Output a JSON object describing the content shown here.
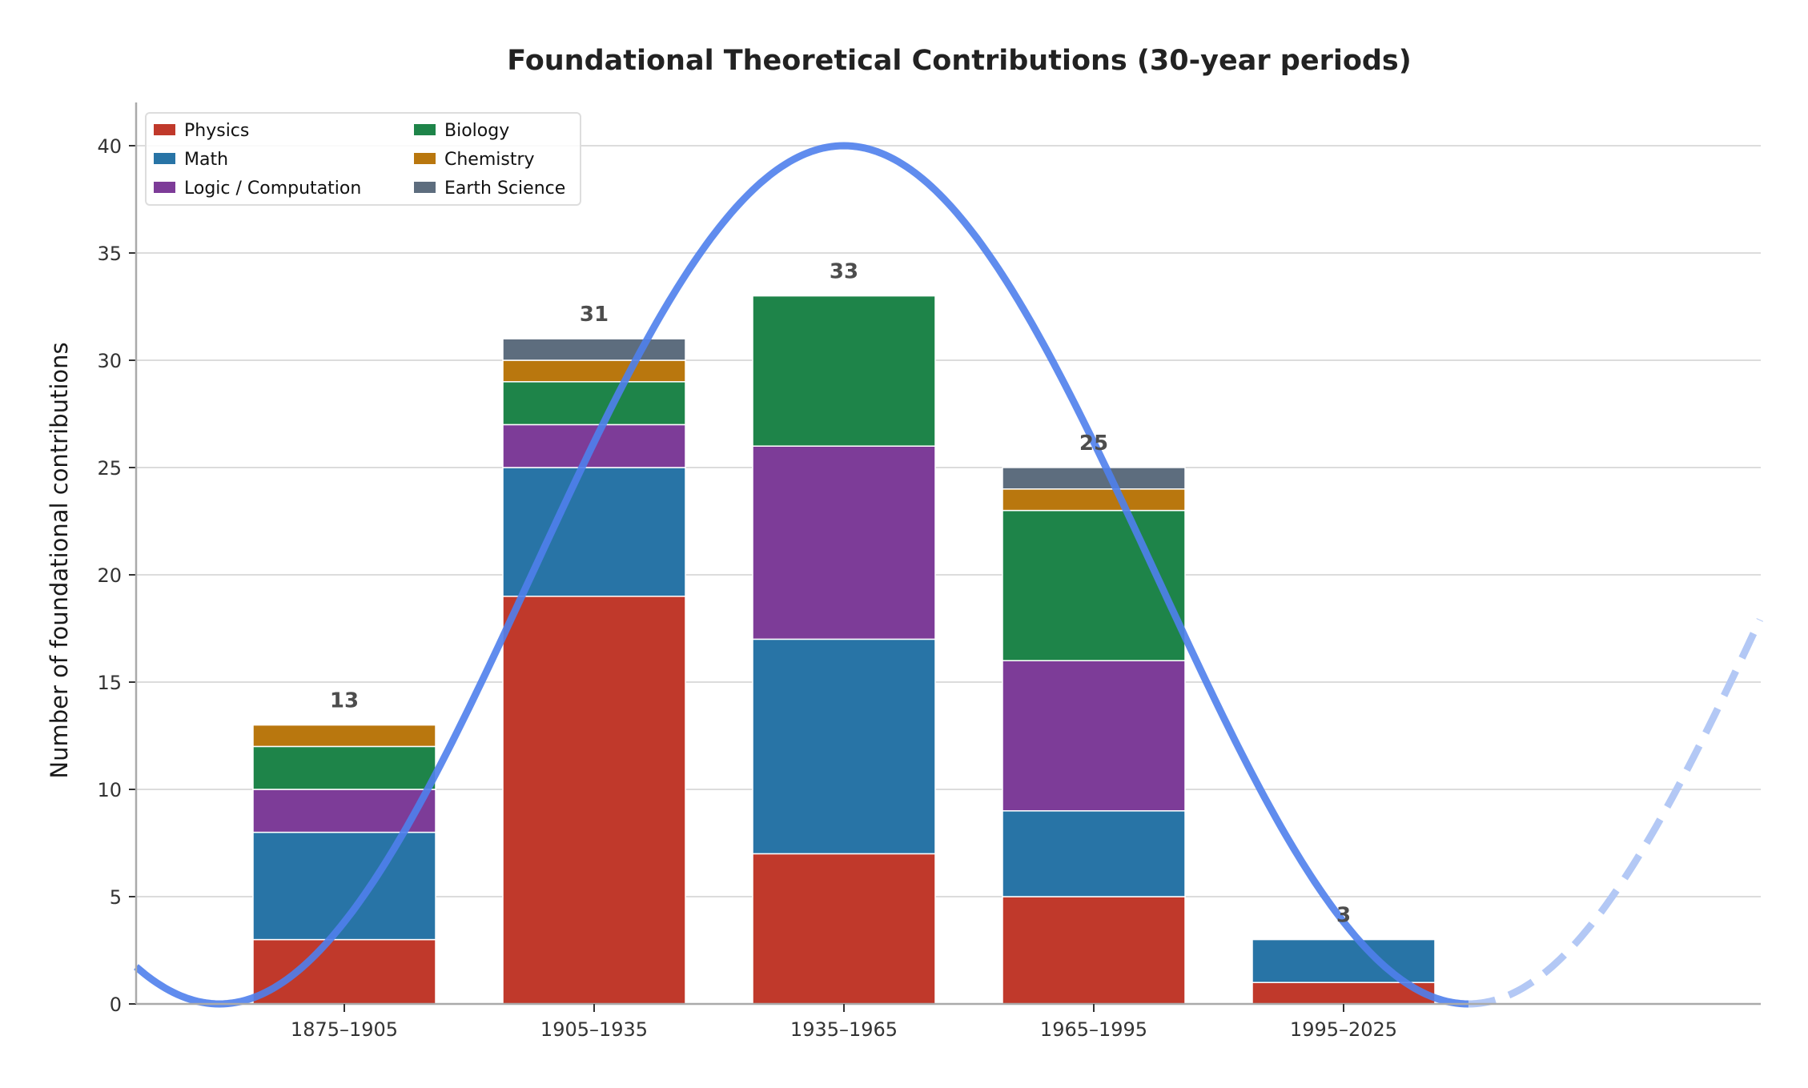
{
  "chart_data": {
    "type": "bar",
    "stacked": true,
    "title": "Foundational Theoretical Contributions (30-year periods)",
    "xlabel": "",
    "ylabel": "Number of foundational contributions",
    "ylim": [
      0,
      42
    ],
    "yticks": [
      0,
      5,
      10,
      15,
      20,
      25,
      30,
      35,
      40
    ],
    "grid": "horizontal",
    "legend_position": "top-left",
    "categories": [
      "1875–1905",
      "1905–1935",
      "1935–1965",
      "1965–1995",
      "1995–2025"
    ],
    "category_midyears": [
      1890,
      1920,
      1950,
      1980,
      2010
    ],
    "series": [
      {
        "name": "Physics",
        "color": "#c0392b",
        "values": [
          3,
          19,
          7,
          5,
          1
        ]
      },
      {
        "name": "Math",
        "color": "#2874a6",
        "values": [
          5,
          6,
          10,
          4,
          2
        ]
      },
      {
        "name": "Logic / Computation",
        "color": "#7d3c98",
        "values": [
          2,
          2,
          9,
          7,
          0
        ]
      },
      {
        "name": "Biology",
        "color": "#1e8449",
        "values": [
          2,
          2,
          7,
          7,
          0
        ]
      },
      {
        "name": "Chemistry",
        "color": "#b9770e",
        "values": [
          1,
          1,
          0,
          1,
          0
        ]
      },
      {
        "name": "Earth Science",
        "color": "#5d6d7e",
        "values": [
          0,
          1,
          0,
          1,
          0
        ]
      }
    ],
    "totals": [
      "13",
      "31",
      "33",
      "25",
      "3"
    ],
    "overlay_curve": {
      "type": "line",
      "description": "sinusoidal trend overlay",
      "color_solid": "#4f7fec",
      "color_dashed": "#b3c8f5",
      "midline": 20,
      "amplitude": 20,
      "peak_year": 1950,
      "period_years": 150,
      "x_start_year": 1865,
      "solid_until_year": 2025,
      "x_end_year": 2060
    }
  }
}
